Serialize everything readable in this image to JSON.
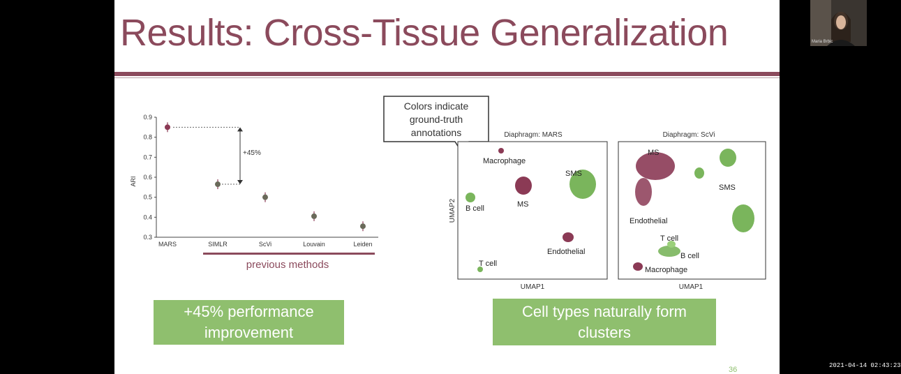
{
  "slide": {
    "title": "Results: Cross-Tissue Generalization",
    "page_number": "36"
  },
  "colors": {
    "title_accent": "#8b4a5c",
    "ms_marker": "#8b3a55",
    "green_marker": "#7ab55c",
    "callout_box": "#8fbf6e"
  },
  "ari_chart": {
    "ylabel": "ARI",
    "ytick_labels": [
      "0.9",
      "0.8",
      "0.7",
      "0.6",
      "0.5",
      "0.4",
      "0.3"
    ],
    "improvement_label": "+45%",
    "group_label": "previous methods"
  },
  "chart_data": {
    "type": "scatter",
    "title": "",
    "xlabel": "",
    "ylabel": "ARI",
    "ylim": [
      0.3,
      0.9
    ],
    "categories": [
      "MARS",
      "SIMLR",
      "ScVi",
      "Louvain",
      "Leiden"
    ],
    "values": [
      0.85,
      0.565,
      0.5,
      0.405,
      0.355
    ],
    "annotations": [
      "+45%",
      "previous methods"
    ],
    "grid": false
  },
  "callout": {
    "line1": "Colors indicate",
    "line2": "ground-truth",
    "line3": "annotations"
  },
  "umap_mars": {
    "title": "Diaphragm: MARS",
    "xlabel": "UMAP1",
    "ylabel": "UMAP2",
    "labels": {
      "macrophage": "Macrophage",
      "sms": "SMS",
      "b_cell": "B cell",
      "ms": "MS",
      "endothelial": "Endothelial",
      "t_cell": "T cell"
    }
  },
  "umap_scvi": {
    "title": "Diaphragm: ScVi",
    "xlabel": "UMAP1",
    "labels": {
      "ms": "MS",
      "sms": "SMS",
      "endothelial": "Endothelial",
      "t_cell": "T cell",
      "b_cell": "B cell",
      "macrophage": "Macrophage"
    }
  },
  "boxes": {
    "performance": "+45% performance improvement",
    "clusters": "Cell types naturally form clusters"
  },
  "webcam": {
    "name": "Maria Brbic"
  },
  "timestamp": "2021-04-14 02:43:23"
}
